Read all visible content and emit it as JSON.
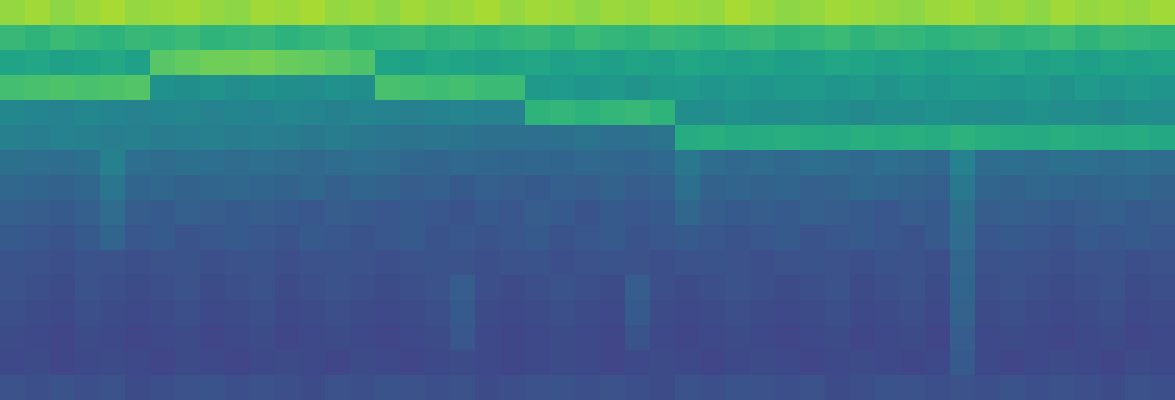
{
  "chart_data": {
    "type": "heatmap",
    "color": "Viridis",
    "zlim": [
      0,
      100
    ],
    "tick_labels": false,
    "cells": [
      [
        84,
        86,
        83,
        85,
        87,
        84,
        85,
        86,
        84,
        83,
        86,
        85,
        87,
        84,
        85,
        83,
        86,
        84,
        85,
        87,
        84,
        86,
        85,
        83,
        85,
        84,
        86,
        85,
        84,
        87,
        85,
        83,
        84,
        86,
        85,
        84,
        83,
        85,
        86,
        84,
        85,
        83,
        86,
        84,
        85,
        84,
        86
      ],
      [
        67,
        65,
        68,
        66,
        64,
        67,
        66,
        68,
        65,
        66,
        67,
        64,
        66,
        68,
        65,
        66,
        67,
        65,
        66,
        64,
        66,
        67,
        65,
        68,
        66,
        65,
        67,
        66,
        64,
        66,
        67,
        65,
        66,
        68,
        65,
        67,
        66,
        64,
        66,
        67,
        65,
        66,
        68,
        65,
        67,
        66,
        65
      ],
      [
        58,
        59,
        57,
        58,
        60,
        57,
        74,
        76,
        78,
        78,
        79,
        77,
        76,
        74,
        72,
        58,
        57,
        59,
        58,
        57,
        58,
        59,
        57,
        58,
        56,
        58,
        57,
        59,
        58,
        57,
        58,
        56,
        57,
        59,
        58,
        57,
        58,
        56,
        57,
        58,
        59,
        57,
        58,
        56,
        58,
        57,
        58
      ],
      [
        70,
        71,
        72,
        71,
        72,
        73,
        50,
        49,
        51,
        48,
        50,
        49,
        48,
        50,
        49,
        71,
        70,
        69,
        70,
        68,
        68,
        53,
        54,
        52,
        53,
        51,
        53,
        54,
        52,
        53,
        52,
        53,
        54,
        52,
        53,
        51,
        53,
        52,
        54,
        53,
        52,
        53,
        51,
        54,
        52,
        53,
        52
      ],
      [
        46,
        45,
        44,
        46,
        45,
        44,
        45,
        46,
        44,
        45,
        44,
        46,
        45,
        43,
        45,
        44,
        43,
        44,
        45,
        44,
        44,
        65,
        66,
        64,
        66,
        67,
        65,
        49,
        48,
        50,
        49,
        48,
        50,
        49,
        47,
        49,
        48,
        50,
        49,
        48,
        49,
        50,
        48,
        49,
        47,
        49,
        48
      ],
      [
        43,
        42,
        44,
        43,
        42,
        43,
        41,
        42,
        43,
        41,
        42,
        41,
        40,
        41,
        40,
        39,
        38,
        39,
        38,
        37,
        37,
        36,
        37,
        38,
        36,
        37,
        38,
        62,
        63,
        61,
        62,
        63,
        62,
        61,
        63,
        62,
        63,
        62,
        64,
        63,
        62,
        61,
        63,
        62,
        61,
        62,
        60
      ],
      [
        37,
        36,
        35,
        37,
        43,
        36,
        35,
        37,
        36,
        35,
        36,
        35,
        34,
        35,
        36,
        35,
        33,
        32,
        34,
        33,
        32,
        33,
        32,
        34,
        33,
        32,
        34,
        40,
        35,
        34,
        35,
        34,
        36,
        35,
        34,
        36,
        35,
        34,
        44,
        35,
        36,
        35,
        37,
        36,
        35,
        36,
        35
      ],
      [
        33,
        32,
        31,
        33,
        39,
        32,
        33,
        31,
        32,
        33,
        32,
        31,
        33,
        30,
        32,
        31,
        29,
        30,
        28,
        30,
        29,
        28,
        30,
        29,
        31,
        29,
        30,
        37,
        31,
        32,
        31,
        32,
        30,
        31,
        33,
        32,
        31,
        30,
        40,
        32,
        31,
        33,
        32,
        31,
        32,
        33,
        31
      ],
      [
        30,
        29,
        28,
        30,
        35,
        29,
        28,
        30,
        29,
        28,
        29,
        28,
        27,
        29,
        28,
        27,
        28,
        27,
        26,
        28,
        27,
        29,
        28,
        26,
        28,
        27,
        28,
        33,
        29,
        28,
        29,
        28,
        30,
        29,
        28,
        27,
        29,
        28,
        37,
        29,
        30,
        29,
        28,
        29,
        30,
        28,
        29
      ],
      [
        28,
        27,
        26,
        28,
        32,
        27,
        28,
        26,
        27,
        28,
        27,
        26,
        28,
        27,
        26,
        27,
        28,
        26,
        27,
        26,
        27,
        28,
        26,
        27,
        28,
        26,
        27,
        28,
        27,
        26,
        27,
        28,
        26,
        27,
        28,
        27,
        26,
        28,
        35,
        27,
        28,
        27,
        26,
        28,
        27,
        28,
        27
      ],
      [
        26,
        25,
        24,
        26,
        25,
        24,
        25,
        26,
        24,
        25,
        26,
        24,
        25,
        26,
        25,
        24,
        25,
        26,
        25,
        24,
        25,
        26,
        24,
        25,
        26,
        25,
        24,
        25,
        26,
        25,
        24,
        25,
        26,
        25,
        24,
        26,
        25,
        24,
        33,
        25,
        26,
        25,
        24,
        25,
        26,
        24,
        25
      ],
      [
        25,
        24,
        23,
        25,
        24,
        23,
        24,
        25,
        23,
        24,
        25,
        23,
        24,
        25,
        24,
        23,
        24,
        25,
        29,
        24,
        23,
        24,
        25,
        24,
        23,
        29,
        24,
        23,
        24,
        25,
        24,
        23,
        24,
        25,
        23,
        24,
        25,
        23,
        32,
        24,
        25,
        24,
        23,
        24,
        25,
        23,
        24
      ],
      [
        24,
        23,
        22,
        24,
        23,
        22,
        23,
        24,
        22,
        23,
        24,
        22,
        23,
        24,
        23,
        22,
        23,
        24,
        28,
        23,
        22,
        23,
        24,
        23,
        22,
        28,
        23,
        22,
        23,
        24,
        23,
        22,
        23,
        24,
        22,
        23,
        24,
        22,
        31,
        23,
        24,
        23,
        22,
        23,
        24,
        22,
        23
      ],
      [
        23,
        22,
        21,
        23,
        22,
        21,
        22,
        23,
        21,
        22,
        23,
        21,
        22,
        23,
        22,
        21,
        22,
        23,
        27,
        22,
        21,
        22,
        23,
        22,
        21,
        26,
        22,
        21,
        22,
        23,
        22,
        21,
        22,
        23,
        21,
        22,
        23,
        21,
        29,
        22,
        23,
        22,
        21,
        22,
        23,
        21,
        22
      ],
      [
        22,
        23,
        21,
        22,
        23,
        22,
        21,
        23,
        22,
        21,
        22,
        23,
        22,
        21,
        23,
        22,
        21,
        22,
        23,
        22,
        21,
        22,
        23,
        22,
        21,
        22,
        23,
        22,
        21,
        22,
        23,
        22,
        21,
        22,
        23,
        22,
        21,
        22,
        28,
        22,
        21,
        22,
        23,
        22,
        21,
        23,
        22
      ],
      [
        25,
        24,
        26,
        24,
        25,
        23,
        24,
        25,
        26,
        24,
        25,
        24,
        23,
        25,
        24,
        26,
        25,
        24,
        25,
        23,
        24,
        25,
        26,
        24,
        25,
        24,
        23,
        25,
        24,
        26,
        25,
        24,
        25,
        23,
        24,
        26,
        25,
        24,
        25,
        24,
        26,
        24,
        25,
        24,
        23,
        25,
        24
      ]
    ]
  }
}
